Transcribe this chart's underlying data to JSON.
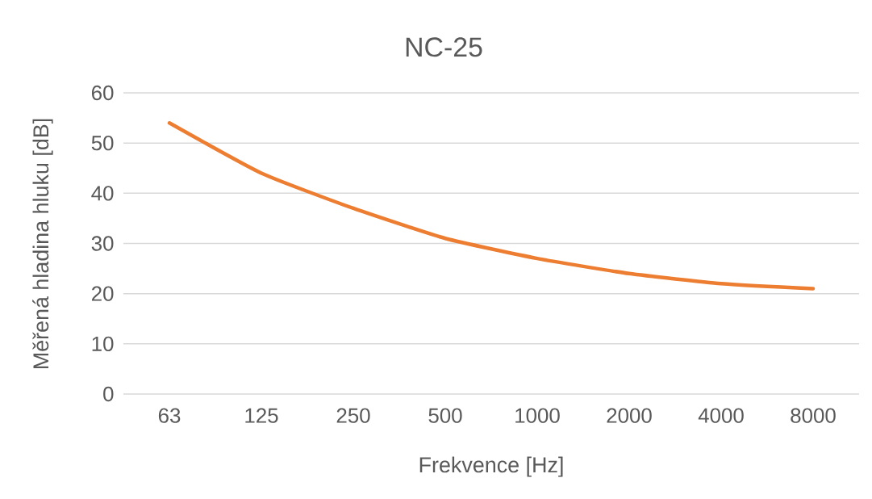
{
  "chart_data": {
    "type": "line",
    "title": "NC-25",
    "xlabel": "Frekvence [Hz]",
    "ylabel": "Měřená hladina hluku [dB]",
    "categories": [
      "63",
      "125",
      "250",
      "500",
      "1000",
      "2000",
      "4000",
      "8000"
    ],
    "series": [
      {
        "color": "#ed7d31",
        "values": [
          54,
          44,
          37,
          31,
          27,
          24,
          22,
          21
        ]
      }
    ],
    "ylim": [
      0,
      60
    ],
    "yticks": [
      0,
      10,
      20,
      30,
      40,
      50,
      60
    ],
    "grid": "y",
    "marker": "none",
    "line_style": "solid"
  }
}
